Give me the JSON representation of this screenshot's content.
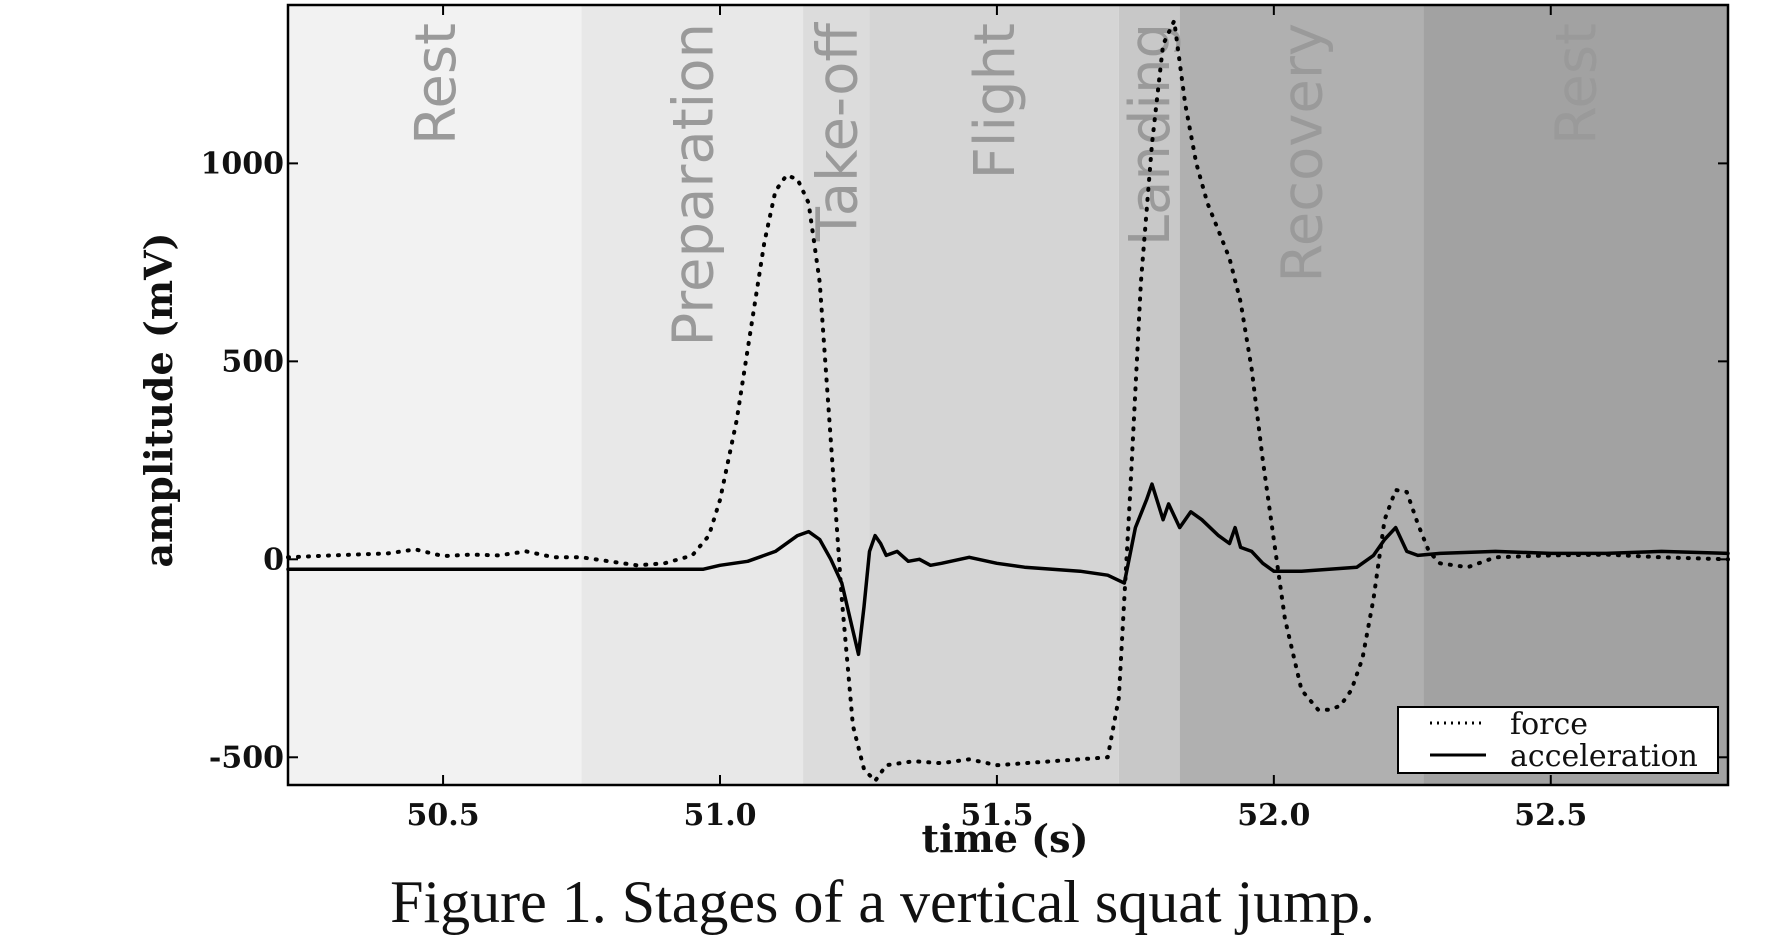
{
  "chart_data": {
    "type": "line",
    "xlabel": "time (s)",
    "ylabel": "amplitude (mV)",
    "xlim": [
      50.22,
      52.82
    ],
    "ylim": [
      -570,
      1400
    ],
    "xticks": [
      50.5,
      51.0,
      51.5,
      52.0,
      52.5
    ],
    "xtick_labels": [
      "50.5",
      "51.0",
      "51.5",
      "52.0",
      "52.5"
    ],
    "yticks": [
      -500,
      0,
      500,
      1000
    ],
    "ytick_labels": [
      "-500",
      "0",
      "500",
      "1000"
    ],
    "grid": false,
    "legend_position": "lower-right",
    "stages": [
      {
        "name": "Rest",
        "start": 50.22,
        "end": 50.75,
        "color": "#f2f2f2"
      },
      {
        "name": "Preparation",
        "start": 50.75,
        "end": 51.15,
        "color": "#e8e8e8"
      },
      {
        "name": "Take-off",
        "start": 51.15,
        "end": 51.27,
        "color": "#dcdcdc"
      },
      {
        "name": "Flight",
        "start": 51.27,
        "end": 51.72,
        "color": "#d5d5d5"
      },
      {
        "name": "Landing",
        "start": 51.72,
        "end": 51.83,
        "color": "#c8c8c8"
      },
      {
        "name": "Recovery",
        "start": 51.83,
        "end": 52.27,
        "color": "#b0b0b0"
      },
      {
        "name": "Rest",
        "start": 52.27,
        "end": 52.82,
        "color": "#a2a2a2"
      }
    ],
    "series": [
      {
        "name": "force",
        "style": "dotted",
        "x": [
          50.22,
          50.3,
          50.4,
          50.45,
          50.5,
          50.55,
          50.6,
          50.65,
          50.7,
          50.75,
          50.8,
          50.85,
          50.9,
          50.95,
          50.98,
          51.0,
          51.03,
          51.06,
          51.08,
          51.1,
          51.12,
          51.14,
          51.16,
          51.18,
          51.2,
          51.22,
          51.24,
          51.26,
          51.28,
          51.3,
          51.35,
          51.4,
          51.45,
          51.5,
          51.55,
          51.6,
          51.65,
          51.7,
          51.72,
          51.74,
          51.76,
          51.78,
          51.8,
          51.82,
          51.84,
          51.86,
          51.88,
          51.9,
          51.92,
          51.94,
          51.96,
          51.98,
          52.0,
          52.02,
          52.05,
          52.08,
          52.1,
          52.12,
          52.14,
          52.16,
          52.18,
          52.2,
          52.22,
          52.24,
          52.26,
          52.28,
          52.3,
          52.35,
          52.4,
          52.5,
          52.6,
          52.7,
          52.82
        ],
        "y": [
          5,
          10,
          15,
          25,
          8,
          12,
          10,
          20,
          5,
          5,
          -5,
          -15,
          -10,
          10,
          60,
          150,
          350,
          620,
          800,
          930,
          970,
          960,
          900,
          700,
          300,
          -100,
          -420,
          -530,
          -560,
          -520,
          -510,
          -515,
          -505,
          -520,
          -515,
          -510,
          -505,
          -500,
          -350,
          150,
          700,
          1050,
          1300,
          1360,
          1150,
          1000,
          900,
          830,
          760,
          650,
          480,
          250,
          50,
          -150,
          -330,
          -380,
          -380,
          -370,
          -330,
          -250,
          -100,
          100,
          175,
          170,
          90,
          20,
          -10,
          -20,
          5,
          10,
          12,
          5,
          0
        ]
      },
      {
        "name": "acceleration",
        "style": "solid",
        "x": [
          50.22,
          50.4,
          50.6,
          50.8,
          50.9,
          50.97,
          51.0,
          51.05,
          51.1,
          51.14,
          51.16,
          51.18,
          51.2,
          51.22,
          51.24,
          51.25,
          51.26,
          51.27,
          51.28,
          51.29,
          51.3,
          51.32,
          51.34,
          51.36,
          51.38,
          51.4,
          51.45,
          51.5,
          51.55,
          51.6,
          51.65,
          51.7,
          51.73,
          51.75,
          51.77,
          51.78,
          51.8,
          51.81,
          51.83,
          51.85,
          51.87,
          51.9,
          51.92,
          51.93,
          51.94,
          51.96,
          51.98,
          52.0,
          52.05,
          52.1,
          52.15,
          52.18,
          52.2,
          52.22,
          52.24,
          52.26,
          52.3,
          52.4,
          52.5,
          52.6,
          52.7,
          52.82
        ],
        "y": [
          -25,
          -25,
          -25,
          -25,
          -25,
          -25,
          -15,
          -5,
          20,
          60,
          70,
          50,
          0,
          -60,
          -180,
          -240,
          -120,
          20,
          60,
          40,
          10,
          20,
          -5,
          0,
          -15,
          -10,
          5,
          -10,
          -20,
          -25,
          -30,
          -40,
          -60,
          80,
          150,
          190,
          100,
          140,
          80,
          120,
          100,
          60,
          40,
          80,
          30,
          20,
          -10,
          -30,
          -30,
          -25,
          -20,
          10,
          50,
          80,
          20,
          10,
          15,
          20,
          15,
          15,
          20,
          15
        ]
      }
    ],
    "legend": [
      "force",
      "acceleration"
    ]
  },
  "caption": "Figure 1. Stages of a vertical squat jump."
}
